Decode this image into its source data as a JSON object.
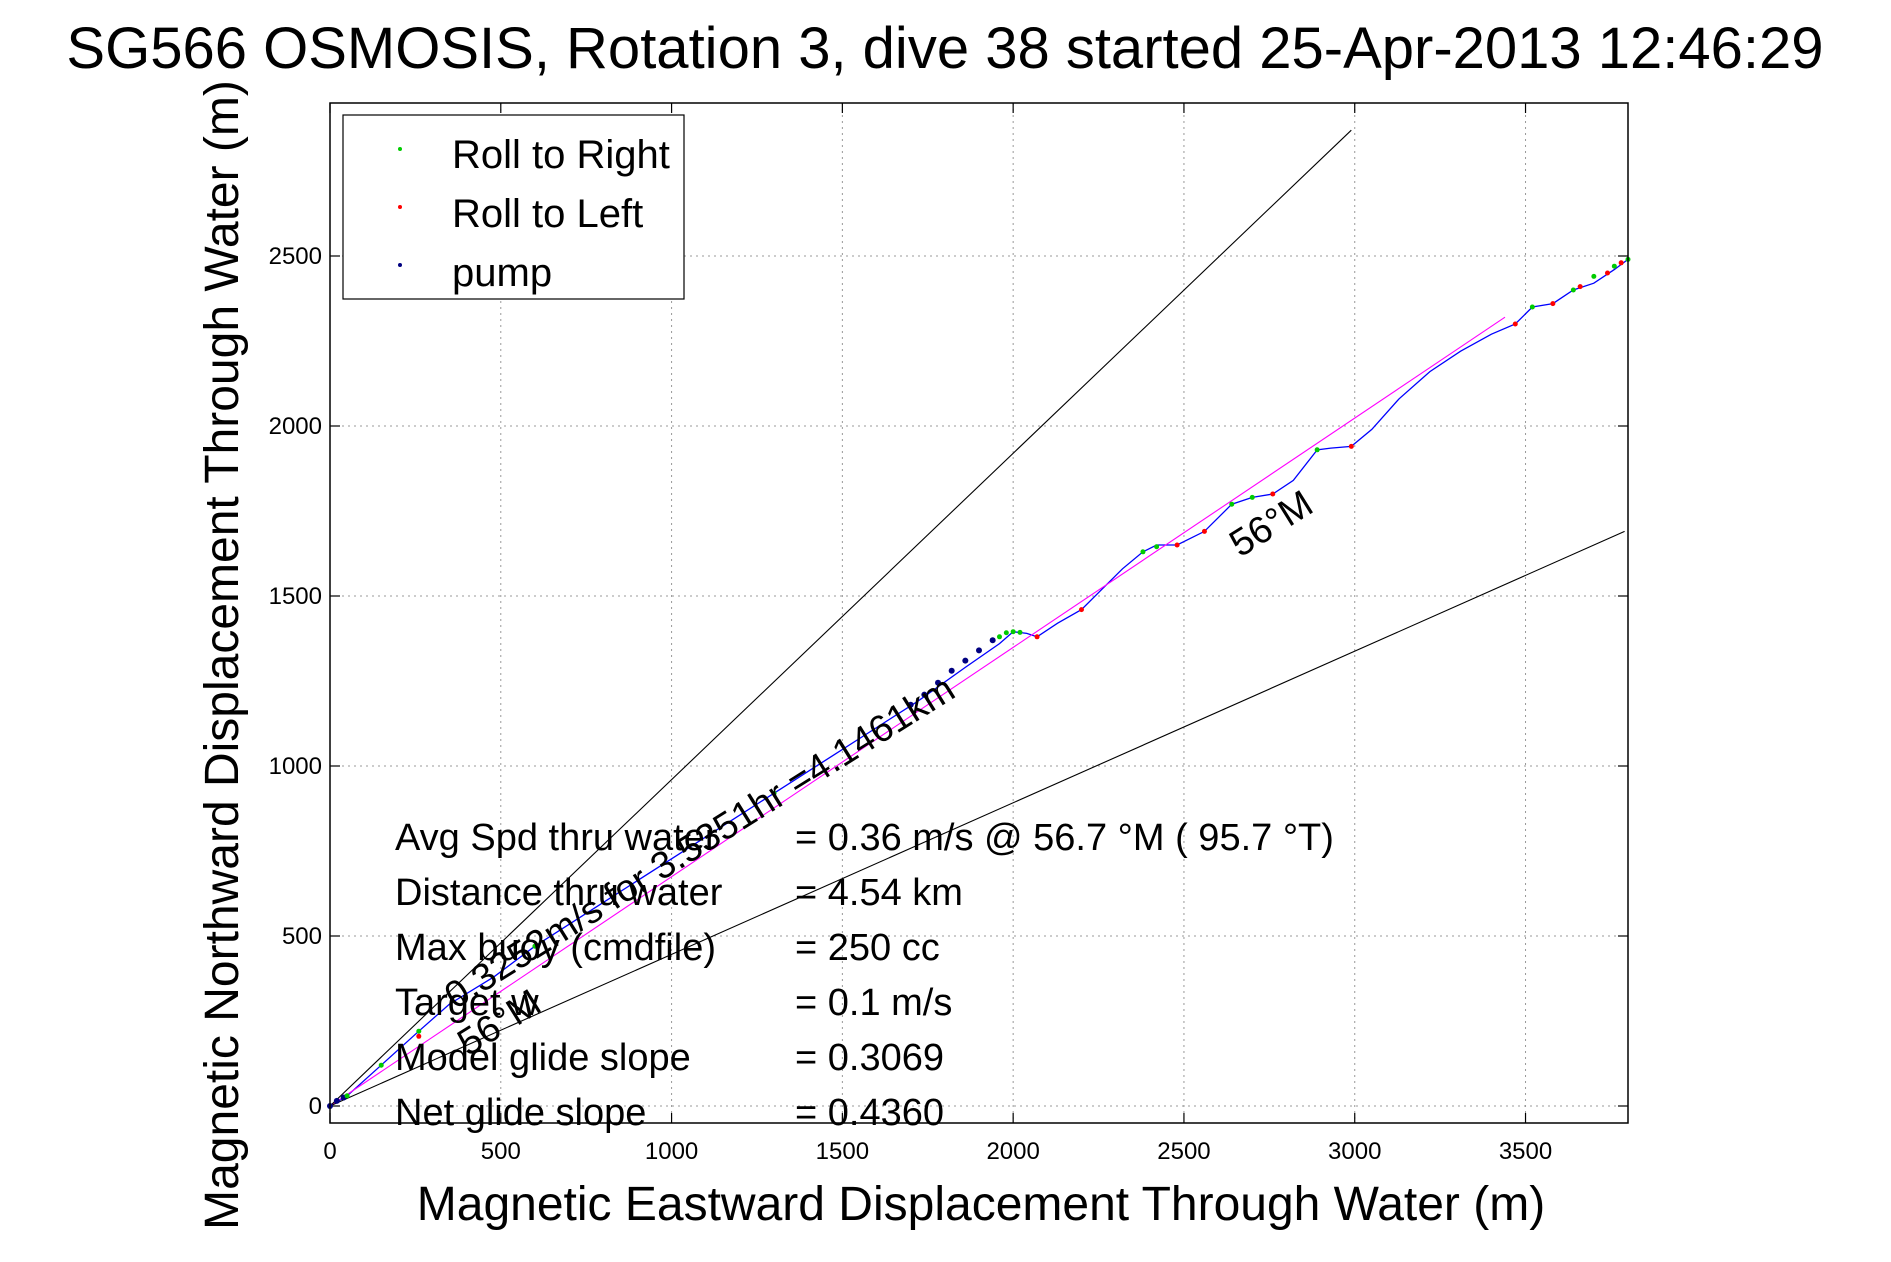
{
  "title": "SG566 OSMOSIS, Rotation 3, dive 38 started 25-Apr-2013 12:46:29",
  "chart_data": {
    "type": "line",
    "xlabel": "Magnetic Eastward Displacement Through Water (m)",
    "ylabel": "Magnetic Northward Displacement Through Water (m)",
    "xlim": [
      0,
      3800
    ],
    "ylim": [
      -50,
      2950
    ],
    "xticks": [
      0,
      500,
      1000,
      1500,
      2000,
      2500,
      3000,
      3500
    ],
    "yticks": [
      0,
      500,
      1000,
      1500,
      2000,
      2500
    ],
    "grid": true,
    "legend_position": "top-left",
    "legend": [
      {
        "label": "Roll to Right",
        "color": "#00cc00"
      },
      {
        "label": "Roll to Left",
        "color": "#ff0000"
      },
      {
        "label": "pump",
        "color": "#000080"
      }
    ],
    "series": [
      {
        "role": "track",
        "color": "#0000ff",
        "x": [
          0,
          50,
          150,
          260,
          350,
          480,
          600,
          740,
          880,
          1020,
          1160,
          1300,
          1440,
          1580,
          1720,
          1860,
          1960,
          2000,
          2040,
          2070,
          2130,
          2200,
          2260,
          2320,
          2380,
          2420,
          2480,
          2560,
          2640,
          2700,
          2760,
          2820,
          2890,
          2930,
          2990,
          3050,
          3130,
          3220,
          3310,
          3400,
          3470,
          3520,
          3580,
          3640,
          3700,
          3760,
          3800
        ],
        "y": [
          0,
          30,
          120,
          220,
          300,
          380,
          470,
          560,
          650,
          740,
          830,
          920,
          1010,
          1100,
          1190,
          1290,
          1360,
          1395,
          1390,
          1380,
          1420,
          1460,
          1520,
          1580,
          1630,
          1650,
          1650,
          1690,
          1770,
          1790,
          1800,
          1840,
          1930,
          1935,
          1940,
          1990,
          2080,
          2160,
          2220,
          2270,
          2300,
          2350,
          2360,
          2400,
          2420,
          2460,
          2490
        ]
      },
      {
        "role": "mean-heading-line",
        "color": "#ff00ff",
        "x": [
          0,
          3440
        ],
        "y": [
          0,
          2320
        ]
      },
      {
        "role": "envelope-upper",
        "color": "#000000",
        "x": [
          0,
          2990
        ],
        "y": [
          0,
          2870
        ]
      },
      {
        "role": "envelope-lower",
        "color": "#000000",
        "x": [
          0,
          3790
        ],
        "y": [
          0,
          1690
        ]
      }
    ],
    "roll_right_x": [
      50,
      150,
      260,
      600,
      1300,
      1960,
      1980,
      2000,
      2020,
      2380,
      2420,
      2640,
      2700,
      2890,
      3520,
      3640,
      3700,
      3760,
      3800
    ],
    "roll_right_y": [
      30,
      120,
      220,
      470,
      920,
      1380,
      1392,
      1395,
      1393,
      1630,
      1645,
      1770,
      1790,
      1930,
      2350,
      2400,
      2440,
      2470,
      2490
    ],
    "roll_left_x": [
      260,
      2070,
      2200,
      2480,
      2560,
      2760,
      2990,
      3470,
      3580,
      3660,
      3740,
      3780
    ],
    "roll_left_y": [
      205,
      1380,
      1460,
      1650,
      1690,
      1800,
      1940,
      2300,
      2360,
      2410,
      2450,
      2480
    ],
    "pump_x": [
      0,
      20,
      40,
      1700,
      1740,
      1780,
      1820,
      1860,
      1900,
      1940
    ],
    "pump_y": [
      0,
      15,
      25,
      1180,
      1210,
      1245,
      1280,
      1310,
      1340,
      1370
    ],
    "annotations": [
      {
        "text": "0.3252m/s for 3.5351hr =4.1461km"
      },
      {
        "text": "56°M"
      },
      {
        "text": "56°M"
      }
    ],
    "stats": [
      {
        "label": "Avg Spd thru water",
        "value": "=  0.36 m/s @  56.7 °M ( 95.7 °T)"
      },
      {
        "label": "Distance thru water",
        "value": "=  4.54 km"
      },
      {
        "label": "Max buoy (cmdfile)",
        "value": "= 250 cc"
      },
      {
        "label": "Target w",
        "value": "= 0.1 m/s"
      },
      {
        "label": "Model glide slope",
        "value": "= 0.3069"
      },
      {
        "label": "Net glide slope",
        "value": "= 0.4360"
      }
    ]
  }
}
